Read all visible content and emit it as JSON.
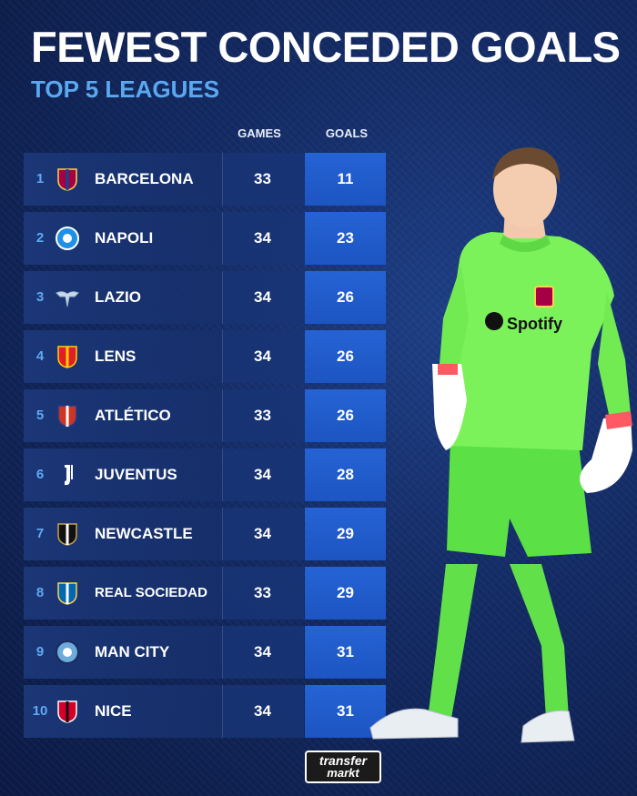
{
  "header": {
    "title": "FEWEST CONCEDED GOALS",
    "subtitle": "TOP 5 LEAGUES"
  },
  "columns": {
    "games": "GAMES",
    "goals": "GOALS"
  },
  "chart_data": {
    "type": "table",
    "title": "FEWEST CONCEDED GOALS",
    "subtitle": "TOP 5 LEAGUES",
    "columns": [
      "GAMES",
      "GOALS"
    ],
    "rows": [
      {
        "rank": "1",
        "team": "BARCELONA",
        "logo": "barcelona-crest-icon",
        "games": "33",
        "goals": "11"
      },
      {
        "rank": "2",
        "team": "NAPOLI",
        "logo": "napoli-crest-icon",
        "games": "34",
        "goals": "23"
      },
      {
        "rank": "3",
        "team": "LAZIO",
        "logo": "lazio-eagle-icon",
        "games": "34",
        "goals": "26"
      },
      {
        "rank": "4",
        "team": "LENS",
        "logo": "lens-crest-icon",
        "games": "34",
        "goals": "26"
      },
      {
        "rank": "5",
        "team": "ATLÉTICO",
        "logo": "atletico-crest-icon",
        "games": "33",
        "goals": "26"
      },
      {
        "rank": "6",
        "team": "JUVENTUS",
        "logo": "juventus-j-icon",
        "games": "34",
        "goals": "28"
      },
      {
        "rank": "7",
        "team": "NEWCASTLE",
        "logo": "newcastle-crest-icon",
        "games": "34",
        "goals": "29"
      },
      {
        "rank": "8",
        "team": "REAL SOCIEDAD",
        "logo": "real-sociedad-crest-icon",
        "games": "33",
        "goals": "29"
      },
      {
        "rank": "9",
        "team": "MAN CITY",
        "logo": "man-city-crest-icon",
        "games": "34",
        "goals": "31"
      },
      {
        "rank": "10",
        "team": "NICE",
        "logo": "nice-crest-icon",
        "games": "34",
        "goals": "31"
      }
    ]
  },
  "player": {
    "sponsor": "Spotify"
  },
  "brand": {
    "line1": "transfer",
    "line2": "markt"
  },
  "colors": {
    "background": "#132a63",
    "accent": "#5aa8f0",
    "goals_cell": "#2563d4",
    "kit": "#7cf25a"
  }
}
